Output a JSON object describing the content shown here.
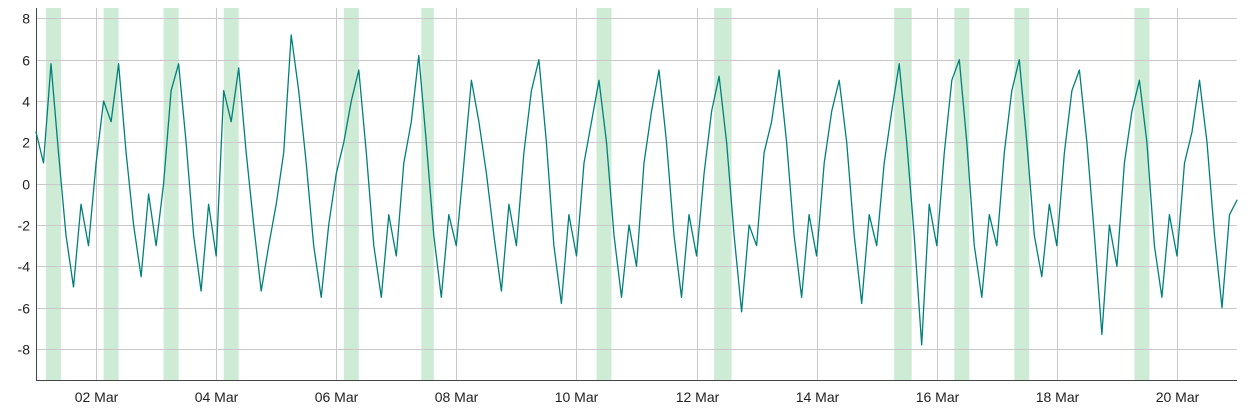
{
  "chart_data": {
    "type": "line",
    "title": "",
    "xlabel": "",
    "ylabel": "",
    "x_tick_labels": [
      "02 Mar",
      "04 Mar",
      "06 Mar",
      "08 Mar",
      "10 Mar",
      "12 Mar",
      "14 Mar",
      "16 Mar",
      "18 Mar",
      "20 Mar"
    ],
    "x_tick_dates": [
      "2024-03-02",
      "2024-03-04",
      "2024-03-06",
      "2024-03-08",
      "2024-03-10",
      "2024-03-12",
      "2024-03-14",
      "2024-03-16",
      "2024-03-18",
      "2024-03-20"
    ],
    "xlim": [
      "2024-03-01 00:00",
      "2024-03-21 00:00"
    ],
    "ylim": [
      -9.5,
      8.5
    ],
    "y_ticks": [
      8,
      6,
      4,
      2,
      0,
      -2,
      -4,
      -6,
      -8
    ],
    "y_tick_labels": [
      "8",
      "6",
      "4",
      "2",
      "0",
      "-2",
      "-4",
      "-6",
      "-8"
    ],
    "grid": true,
    "colors": {
      "series": "#00807a",
      "band": "#cdebd5"
    },
    "shaded_periods": [
      [
        "2024-03-01 04:00",
        "2024-03-01 10:00"
      ],
      [
        "2024-03-02 03:00",
        "2024-03-02 09:00"
      ],
      [
        "2024-03-03 03:00",
        "2024-03-03 09:00"
      ],
      [
        "2024-03-04 03:00",
        "2024-03-04 09:00"
      ],
      [
        "2024-03-06 03:00",
        "2024-03-06 09:00"
      ],
      [
        "2024-03-07 10:00",
        "2024-03-07 15:00"
      ],
      [
        "2024-03-10 08:00",
        "2024-03-10 14:00"
      ],
      [
        "2024-03-12 07:00",
        "2024-03-12 14:00"
      ],
      [
        "2024-03-15 07:00",
        "2024-03-15 14:00"
      ],
      [
        "2024-03-16 07:00",
        "2024-03-16 13:00"
      ],
      [
        "2024-03-17 07:00",
        "2024-03-17 13:00"
      ],
      [
        "2024-03-19 07:00",
        "2024-03-19 13:00"
      ]
    ],
    "series": [
      {
        "x": [
          "2024-03-01 00:00",
          "2024-03-01 03:00",
          "2024-03-01 06:00",
          "2024-03-01 09:00",
          "2024-03-01 12:00",
          "2024-03-01 15:00",
          "2024-03-01 18:00",
          "2024-03-01 21:00",
          "2024-03-02 00:00",
          "2024-03-02 03:00",
          "2024-03-02 06:00",
          "2024-03-02 09:00",
          "2024-03-02 12:00",
          "2024-03-02 15:00",
          "2024-03-02 18:00",
          "2024-03-02 21:00",
          "2024-03-03 00:00",
          "2024-03-03 03:00",
          "2024-03-03 06:00",
          "2024-03-03 09:00",
          "2024-03-03 12:00",
          "2024-03-03 15:00",
          "2024-03-03 18:00",
          "2024-03-03 21:00",
          "2024-03-04 00:00",
          "2024-03-04 03:00",
          "2024-03-04 06:00",
          "2024-03-04 09:00",
          "2024-03-04 12:00",
          "2024-03-04 15:00",
          "2024-03-04 18:00",
          "2024-03-04 21:00",
          "2024-03-05 00:00",
          "2024-03-05 03:00",
          "2024-03-05 06:00",
          "2024-03-05 09:00",
          "2024-03-05 12:00",
          "2024-03-05 15:00",
          "2024-03-05 18:00",
          "2024-03-05 21:00",
          "2024-03-06 00:00",
          "2024-03-06 03:00",
          "2024-03-06 06:00",
          "2024-03-06 09:00",
          "2024-03-06 12:00",
          "2024-03-06 15:00",
          "2024-03-06 18:00",
          "2024-03-06 21:00",
          "2024-03-07 00:00",
          "2024-03-07 03:00",
          "2024-03-07 06:00",
          "2024-03-07 09:00",
          "2024-03-07 12:00",
          "2024-03-07 15:00",
          "2024-03-07 18:00",
          "2024-03-07 21:00",
          "2024-03-08 00:00",
          "2024-03-08 03:00",
          "2024-03-08 06:00",
          "2024-03-08 09:00",
          "2024-03-08 12:00",
          "2024-03-08 15:00",
          "2024-03-08 18:00",
          "2024-03-08 21:00",
          "2024-03-09 00:00",
          "2024-03-09 03:00",
          "2024-03-09 06:00",
          "2024-03-09 09:00",
          "2024-03-09 12:00",
          "2024-03-09 15:00",
          "2024-03-09 18:00",
          "2024-03-09 21:00",
          "2024-03-10 00:00",
          "2024-03-10 03:00",
          "2024-03-10 06:00",
          "2024-03-10 09:00",
          "2024-03-10 12:00",
          "2024-03-10 15:00",
          "2024-03-10 18:00",
          "2024-03-10 21:00",
          "2024-03-11 00:00",
          "2024-03-11 03:00",
          "2024-03-11 06:00",
          "2024-03-11 09:00",
          "2024-03-11 12:00",
          "2024-03-11 15:00",
          "2024-03-11 18:00",
          "2024-03-11 21:00",
          "2024-03-12 00:00",
          "2024-03-12 03:00",
          "2024-03-12 06:00",
          "2024-03-12 09:00",
          "2024-03-12 12:00",
          "2024-03-12 15:00",
          "2024-03-12 18:00",
          "2024-03-12 21:00",
          "2024-03-13 00:00",
          "2024-03-13 03:00",
          "2024-03-13 06:00",
          "2024-03-13 09:00",
          "2024-03-13 12:00",
          "2024-03-13 15:00",
          "2024-03-13 18:00",
          "2024-03-13 21:00",
          "2024-03-14 00:00",
          "2024-03-14 03:00",
          "2024-03-14 06:00",
          "2024-03-14 09:00",
          "2024-03-14 12:00",
          "2024-03-14 15:00",
          "2024-03-14 18:00",
          "2024-03-14 21:00",
          "2024-03-15 00:00",
          "2024-03-15 03:00",
          "2024-03-15 06:00",
          "2024-03-15 09:00",
          "2024-03-15 12:00",
          "2024-03-15 15:00",
          "2024-03-15 18:00",
          "2024-03-15 21:00",
          "2024-03-16 00:00",
          "2024-03-16 03:00",
          "2024-03-16 06:00",
          "2024-03-16 09:00",
          "2024-03-16 12:00",
          "2024-03-16 15:00",
          "2024-03-16 18:00",
          "2024-03-16 21:00",
          "2024-03-17 00:00",
          "2024-03-17 03:00",
          "2024-03-17 06:00",
          "2024-03-17 09:00",
          "2024-03-17 12:00",
          "2024-03-17 15:00",
          "2024-03-17 18:00",
          "2024-03-17 21:00",
          "2024-03-18 00:00",
          "2024-03-18 03:00",
          "2024-03-18 06:00",
          "2024-03-18 09:00",
          "2024-03-18 12:00",
          "2024-03-18 15:00",
          "2024-03-18 18:00",
          "2024-03-18 21:00",
          "2024-03-19 00:00",
          "2024-03-19 03:00",
          "2024-03-19 06:00",
          "2024-03-19 09:00",
          "2024-03-19 12:00",
          "2024-03-19 15:00",
          "2024-03-19 18:00",
          "2024-03-19 21:00",
          "2024-03-20 00:00",
          "2024-03-20 03:00",
          "2024-03-20 06:00",
          "2024-03-20 09:00",
          "2024-03-20 12:00",
          "2024-03-20 15:00",
          "2024-03-20 18:00",
          "2024-03-20 21:00",
          "2024-03-21 00:00"
        ],
        "values": [
          2.5,
          1.0,
          5.8,
          1.5,
          -2.5,
          -5.0,
          -1.0,
          -3.0,
          1.0,
          4.0,
          3.0,
          5.8,
          1.5,
          -2.0,
          -4.5,
          -0.5,
          -3.0,
          0.0,
          4.5,
          5.8,
          2.0,
          -2.5,
          -5.2,
          -1.0,
          -3.5,
          4.5,
          3.0,
          5.6,
          1.5,
          -2.0,
          -5.2,
          -3.0,
          -1.0,
          1.5,
          7.2,
          4.5,
          1.0,
          -3.0,
          -5.5,
          -2.0,
          0.5,
          2.0,
          4.0,
          5.5,
          1.5,
          -3.0,
          -5.5,
          -1.5,
          -3.5,
          1.0,
          3.0,
          6.2,
          2.0,
          -2.5,
          -5.5,
          -1.5,
          -3.0,
          1.0,
          5.0,
          3.0,
          0.5,
          -2.5,
          -5.2,
          -1.0,
          -3.0,
          1.5,
          4.5,
          6.0,
          2.0,
          -3.0,
          -5.8,
          -1.5,
          -3.5,
          1.0,
          3.0,
          5.0,
          2.0,
          -2.5,
          -5.5,
          -2.0,
          -4.0,
          1.0,
          3.5,
          5.5,
          2.0,
          -2.5,
          -5.5,
          -1.5,
          -3.5,
          0.5,
          3.5,
          5.2,
          2.0,
          -2.5,
          -6.2,
          -2.0,
          -3.0,
          1.5,
          3.0,
          5.5,
          2.0,
          -2.5,
          -5.5,
          -1.5,
          -3.5,
          1.0,
          3.5,
          5.0,
          2.0,
          -2.5,
          -5.8,
          -1.5,
          -3.0,
          1.0,
          3.5,
          5.8,
          2.0,
          -2.5,
          -7.8,
          -1.0,
          -3.0,
          1.5,
          5.0,
          6.0,
          2.0,
          -3.0,
          -5.5,
          -1.5,
          -3.0,
          1.5,
          4.5,
          6.0,
          2.0,
          -2.5,
          -4.5,
          -1.0,
          -3.0,
          1.5,
          4.5,
          5.5,
          2.0,
          -2.5,
          -7.3,
          -2.0,
          -4.0,
          1.0,
          3.5,
          5.0,
          2.0,
          -3.0,
          -5.5,
          -1.5,
          -3.5,
          1.0,
          2.5,
          5.0,
          2.0,
          -2.5,
          -6.0,
          -1.5,
          -0.8
        ]
      }
    ]
  }
}
